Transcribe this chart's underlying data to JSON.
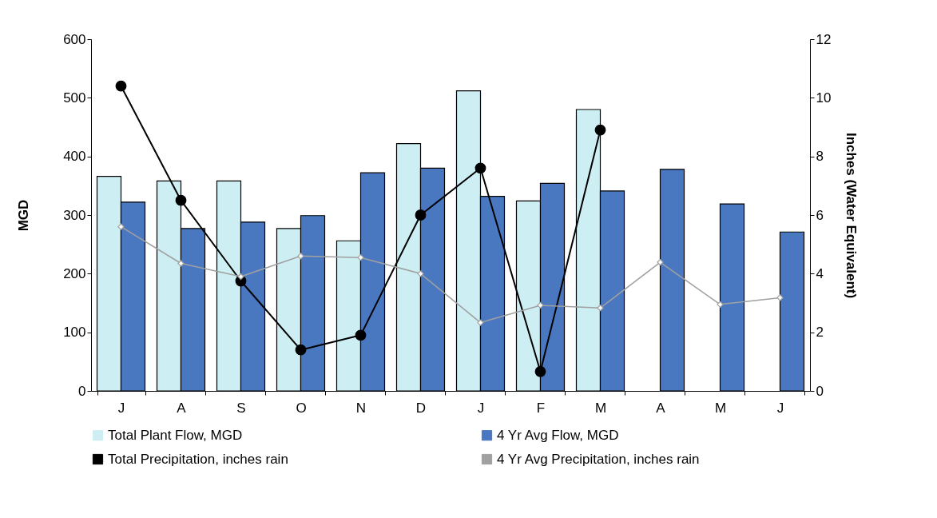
{
  "chart_data": {
    "type": "bar",
    "ylabel": "MGD",
    "y2label": "Inches (Water Equivalent)",
    "categories": [
      "J",
      "A",
      "S",
      "O",
      "N",
      "D",
      "J",
      "F",
      "M",
      "A",
      "M",
      "J"
    ],
    "series": [
      {
        "name": "Total Plant Flow, MGD",
        "color": "#cdeef2",
        "values": [
          366,
          358,
          358,
          277,
          256,
          422,
          512,
          324,
          480,
          null,
          null,
          null
        ]
      },
      {
        "name": "4 Yr Avg Flow, MGD",
        "color": "#4a78c0",
        "values": [
          322,
          277,
          288,
          299,
          372,
          380,
          332,
          354,
          341,
          378,
          319,
          271
        ]
      },
      {
        "name": "Total Precipitation, inches rain",
        "type": "line",
        "axis": "y2",
        "color": "#000000",
        "marker": "circle",
        "values": [
          10.4,
          6.5,
          3.75,
          1.4,
          1.9,
          6.0,
          7.6,
          0.66,
          8.9,
          null,
          null,
          null
        ]
      },
      {
        "name": "4 Yr Avg Precipitation, inches rain",
        "type": "line",
        "axis": "y2",
        "color": "#a0a0a0",
        "marker": "diamond",
        "values": [
          5.6,
          4.35,
          3.9,
          4.6,
          4.55,
          4.0,
          2.33,
          2.92,
          2.83,
          4.39,
          2.95,
          3.18
        ]
      }
    ],
    "ylim": [
      0,
      600
    ],
    "yticks": [
      0,
      100,
      200,
      300,
      400,
      500,
      600
    ],
    "y2lim": [
      0,
      12
    ],
    "y2ticks": [
      0,
      2,
      4,
      6,
      8,
      10,
      12
    ],
    "grid": false,
    "legend": "bottom"
  }
}
